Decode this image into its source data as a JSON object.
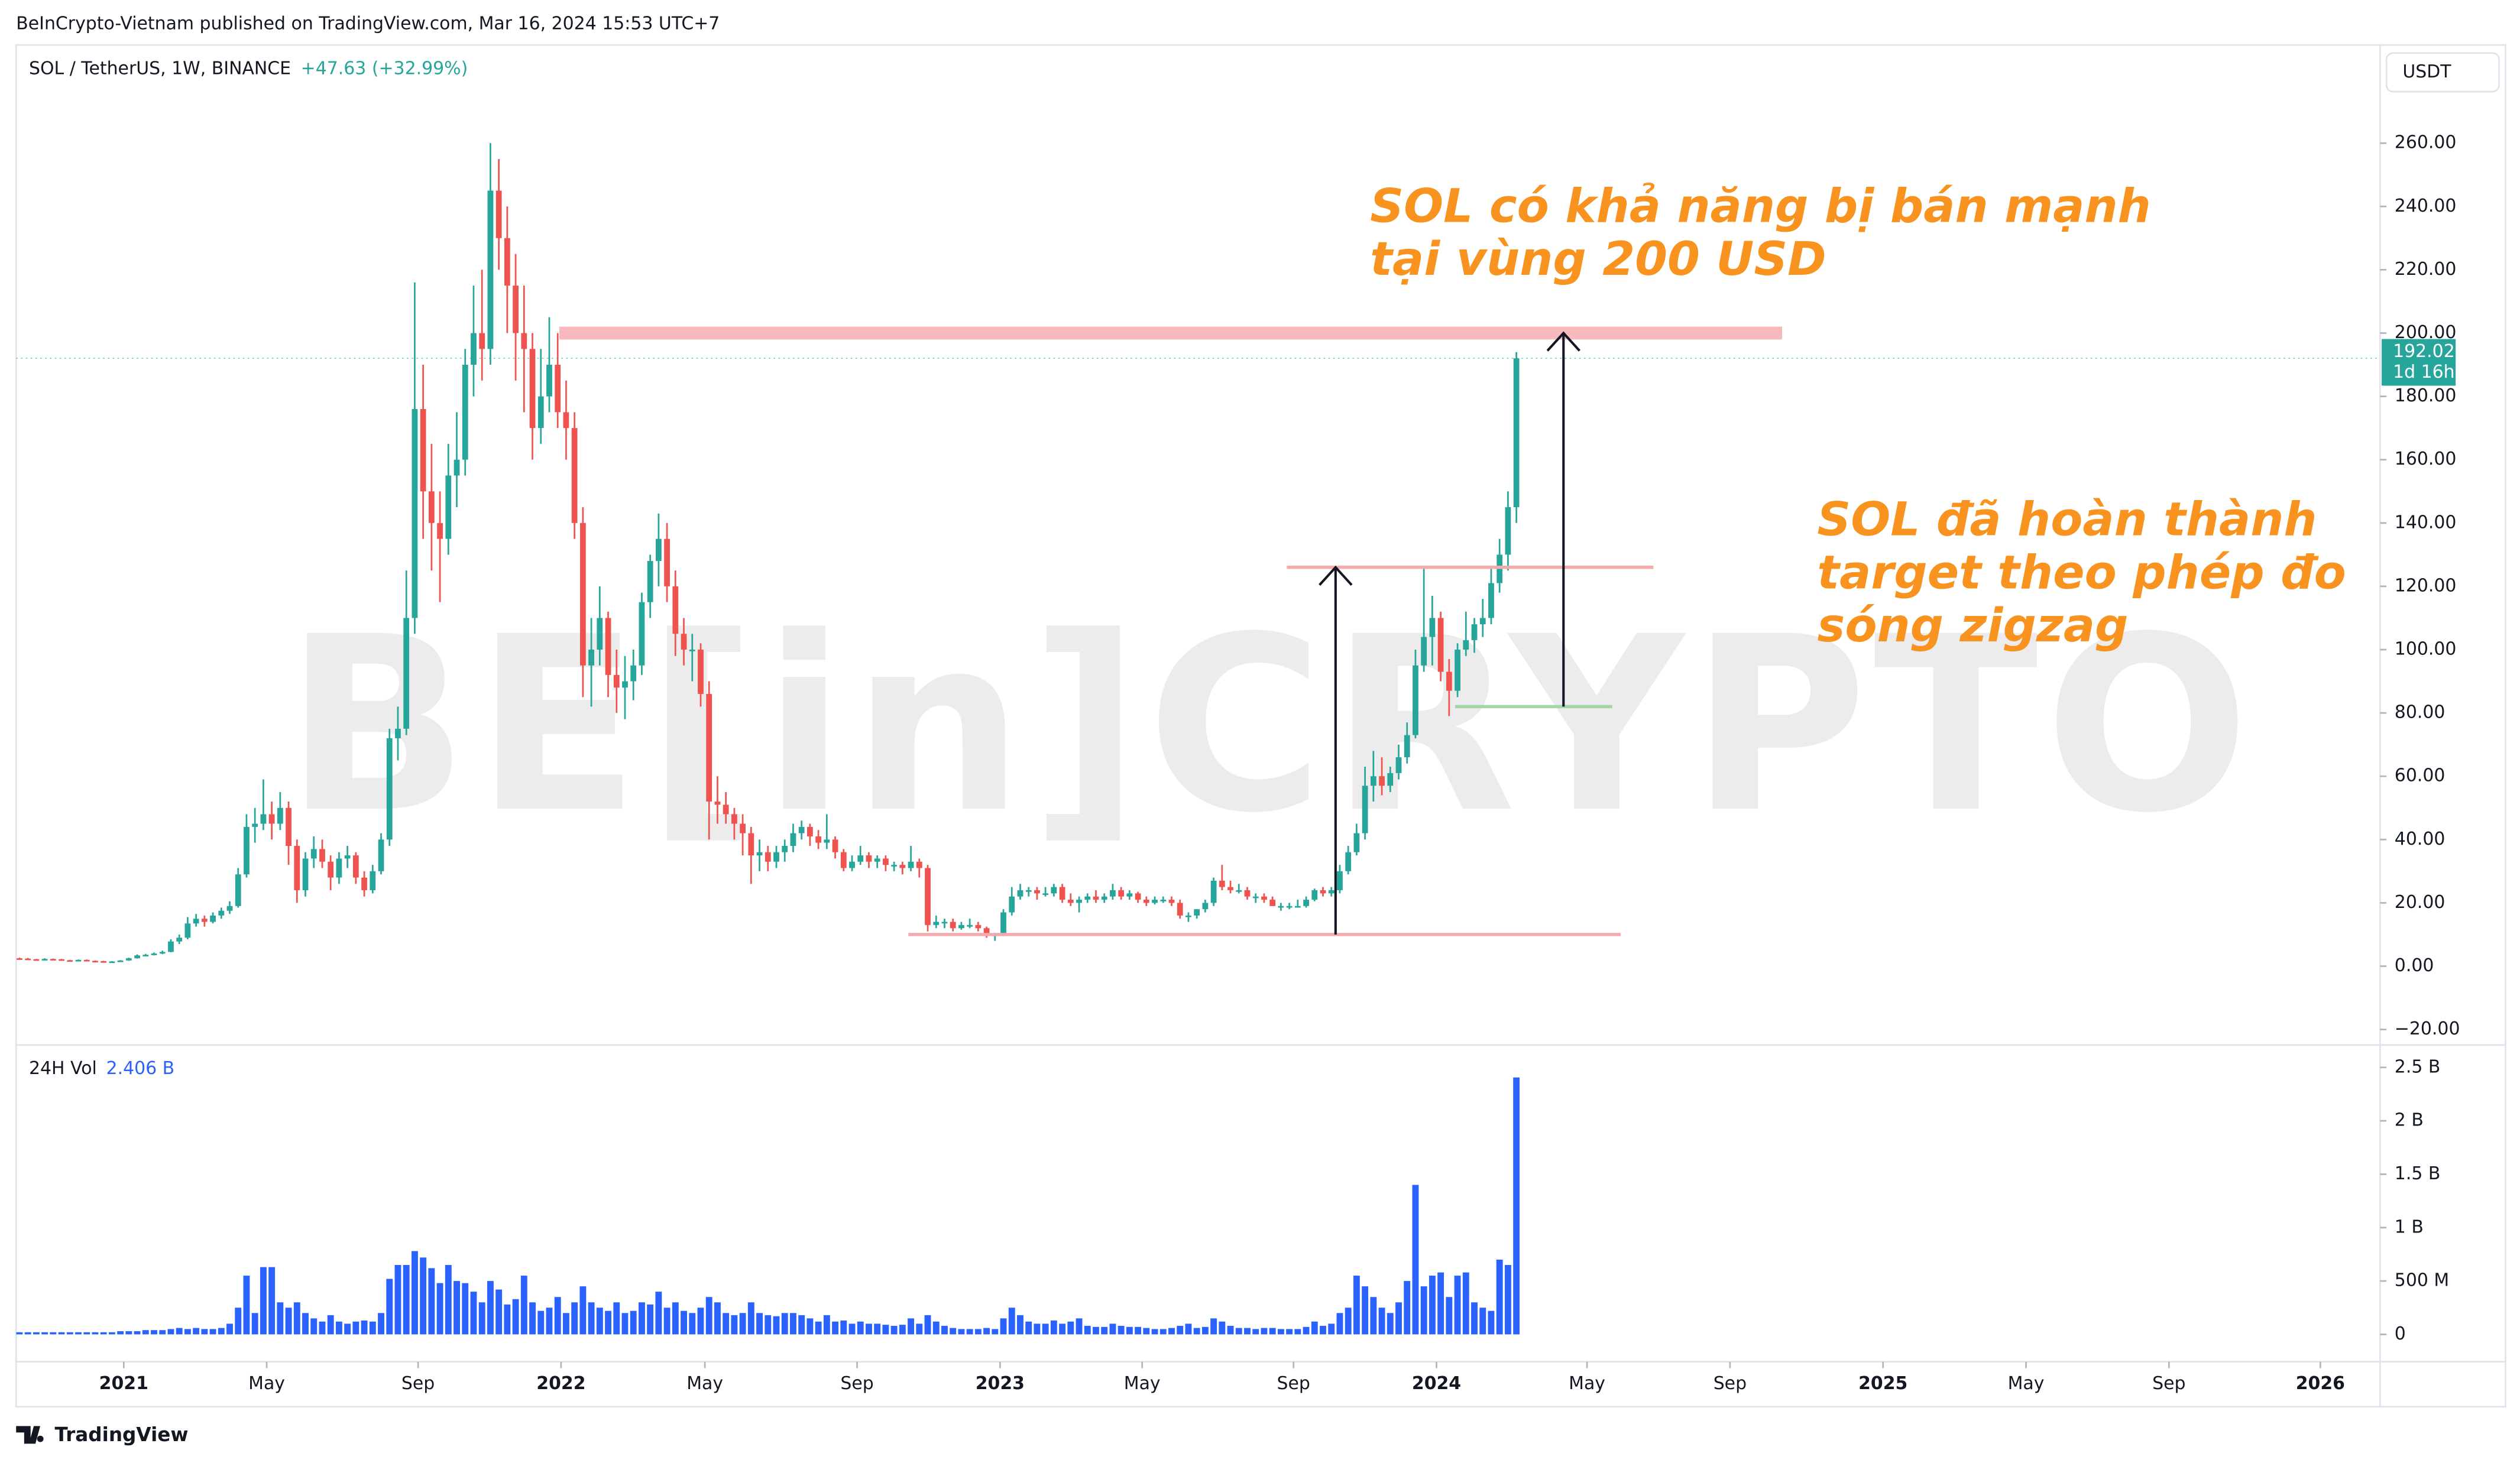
{
  "chart_data": {
    "type": "candlestick",
    "title": "BeInCrypto-Vietnam published on TradingView.com, Mar 16, 2024 15:53 UTC+7",
    "symbol": "SOL / TetherUS, 1W, BINANCE",
    "change": "+47.63 (+32.99%)",
    "currency": "USDT",
    "price_tag": "192.02",
    "countdown": "1d 16h",
    "volume_label": "24H Vol",
    "volume_last": "2.406 B",
    "watermark": "BE[in]CRYPTO",
    "footer": "TradingView",
    "annotations": [
      [
        "SOL có khả năng bị bán mạnh",
        "tại vùng 200 USD"
      ],
      [
        "SOL đã hoàn thành",
        "target theo phép đo",
        "sóng zigzag"
      ]
    ],
    "up_color": "#26a69a",
    "down_color": "#ef5350",
    "volume_color": "#2962ff",
    "grid": false,
    "xlim": [
      -0.4,
      280.7
    ],
    "xticks": [
      {
        "value": 12.4,
        "label": "2021"
      },
      {
        "value": 29.4,
        "label": "May"
      },
      {
        "value": 47.4,
        "label": "Sep"
      },
      {
        "value": 64.4,
        "label": "2022"
      },
      {
        "value": 81.5,
        "label": "May"
      },
      {
        "value": 99.6,
        "label": "Sep"
      },
      {
        "value": 116.6,
        "label": "2023"
      },
      {
        "value": 133.5,
        "label": "May"
      },
      {
        "value": 151.5,
        "label": "Sep"
      },
      {
        "value": 168.5,
        "label": "2024"
      },
      {
        "value": 186.4,
        "label": "May"
      },
      {
        "value": 203.4,
        "label": "Sep"
      },
      {
        "value": 221.6,
        "label": "2025"
      },
      {
        "value": 238.6,
        "label": "May"
      },
      {
        "value": 255.6,
        "label": "Sep"
      },
      {
        "value": 273.6,
        "label": "2026"
      }
    ],
    "ylim": [
      -24.9,
      291
    ],
    "yticks": [
      {
        "value": -20,
        "label": "−20.00"
      },
      {
        "value": 0,
        "label": "0.00"
      },
      {
        "value": 20,
        "label": "20.00"
      },
      {
        "value": 40,
        "label": "40.00"
      },
      {
        "value": 60,
        "label": "60.00"
      },
      {
        "value": 80,
        "label": "80.00"
      },
      {
        "value": 100,
        "label": "100.00"
      },
      {
        "value": 120,
        "label": "120.00"
      },
      {
        "value": 140,
        "label": "140.00"
      },
      {
        "value": 160,
        "label": "160.00"
      },
      {
        "value": 180,
        "label": "180.00"
      },
      {
        "value": 200,
        "label": "200.00"
      },
      {
        "value": 220,
        "label": "220.00"
      },
      {
        "value": 240,
        "label": "240.00"
      },
      {
        "value": 260,
        "label": "260.00"
      }
    ],
    "y2lim": [
      -0.256,
      2.71
    ],
    "y2ticks": [
      0,
      {
        "value": 0.5,
        "label": "500 M"
      },
      {
        "value": 1,
        "label": "1 B"
      },
      {
        "value": 1.5,
        "label": "1.5 B"
      },
      {
        "value": 2,
        "label": "2 B"
      },
      {
        "value": 2.5,
        "label": "2.5 B"
      }
    ],
    "ohlc": [
      [
        2.5,
        2.7,
        2.2,
        2.4
      ],
      [
        2.4,
        2.6,
        2.1,
        2.2
      ],
      [
        2.2,
        2.3,
        1.9,
        2.0
      ],
      [
        2.0,
        2.5,
        1.9,
        2.3
      ],
      [
        2.3,
        2.4,
        2.0,
        2.2
      ],
      [
        2.2,
        2.3,
        1.8,
        1.9
      ],
      [
        1.9,
        2.0,
        1.7,
        1.8
      ],
      [
        1.8,
        2.1,
        1.7,
        2.0
      ],
      [
        2.0,
        2.1,
        1.6,
        1.7
      ],
      [
        1.7,
        1.8,
        1.5,
        1.6
      ],
      [
        1.6,
        1.7,
        1.4,
        1.5
      ],
      [
        1.5,
        1.6,
        1.4,
        1.5
      ],
      [
        1.5,
        1.9,
        1.4,
        1.8
      ],
      [
        1.8,
        2.7,
        1.7,
        2.5
      ],
      [
        2.5,
        3.7,
        2.4,
        3.4
      ],
      [
        3.4,
        3.9,
        3.1,
        3.6
      ],
      [
        3.6,
        4.3,
        3.4,
        4.0
      ],
      [
        4.0,
        4.9,
        3.8,
        4.5
      ],
      [
        4.5,
        8.5,
        4.4,
        7.8
      ],
      [
        7.8,
        10,
        7,
        9
      ],
      [
        9,
        15.5,
        8.5,
        13.5
      ],
      [
        13.5,
        16.5,
        12.5,
        15
      ],
      [
        15,
        16,
        12.5,
        14
      ],
      [
        14,
        17,
        13.5,
        16
      ],
      [
        16,
        18.5,
        15,
        17.5
      ],
      [
        17.5,
        20.5,
        16.5,
        19
      ],
      [
        19,
        31,
        18.5,
        29
      ],
      [
        29,
        48,
        28,
        44
      ],
      [
        44,
        50,
        39,
        45
      ],
      [
        45,
        59,
        43,
        48
      ],
      [
        48,
        52,
        40,
        45
      ],
      [
        45,
        55,
        43,
        50
      ],
      [
        50,
        52,
        32,
        38
      ],
      [
        38,
        40,
        20,
        24
      ],
      [
        24,
        36,
        22,
        34
      ],
      [
        34,
        41,
        31,
        37
      ],
      [
        37,
        40,
        31,
        33
      ],
      [
        33,
        35,
        24,
        28
      ],
      [
        28,
        36,
        26,
        34
      ],
      [
        34,
        38,
        31,
        35
      ],
      [
        35,
        36,
        26,
        28
      ],
      [
        28,
        30,
        22,
        24
      ],
      [
        24,
        32,
        23,
        30
      ],
      [
        30,
        42,
        29,
        40
      ],
      [
        40,
        75,
        38,
        72
      ],
      [
        72,
        82,
        65,
        75
      ],
      [
        75,
        125,
        73,
        110
      ],
      [
        110,
        216,
        105,
        176
      ],
      [
        176,
        190,
        135,
        150
      ],
      [
        150,
        165,
        125,
        140
      ],
      [
        140,
        150,
        115,
        135
      ],
      [
        135,
        165,
        130,
        155
      ],
      [
        155,
        175,
        145,
        160
      ],
      [
        160,
        195,
        155,
        190
      ],
      [
        190,
        215,
        180,
        200
      ],
      [
        200,
        220,
        185,
        195
      ],
      [
        195,
        260,
        190,
        245
      ],
      [
        245,
        255,
        220,
        230
      ],
      [
        230,
        240,
        200,
        215
      ],
      [
        215,
        225,
        185,
        200
      ],
      [
        200,
        215,
        175,
        195
      ],
      [
        195,
        200,
        160,
        170
      ],
      [
        170,
        195,
        165,
        180
      ],
      [
        180,
        205,
        175,
        190
      ],
      [
        190,
        200,
        170,
        175
      ],
      [
        175,
        185,
        160,
        170
      ],
      [
        170,
        175,
        135,
        140
      ],
      [
        140,
        145,
        85,
        95
      ],
      [
        95,
        110,
        82,
        100
      ],
      [
        100,
        120,
        95,
        110
      ],
      [
        110,
        112,
        85,
        92
      ],
      [
        92,
        100,
        80,
        88
      ],
      [
        88,
        98,
        78,
        90
      ],
      [
        90,
        100,
        84,
        95
      ],
      [
        95,
        118,
        92,
        115
      ],
      [
        115,
        130,
        110,
        128
      ],
      [
        128,
        143,
        120,
        135
      ],
      [
        135,
        140,
        115,
        120
      ],
      [
        120,
        125,
        98,
        105
      ],
      [
        105,
        110,
        95,
        100
      ],
      [
        100,
        105,
        90,
        100
      ],
      [
        100,
        102,
        82,
        86
      ],
      [
        86,
        90,
        40,
        52
      ],
      [
        52,
        60,
        45,
        51
      ],
      [
        51,
        55,
        45,
        48
      ],
      [
        48,
        50,
        40,
        45
      ],
      [
        45,
        48,
        35,
        42
      ],
      [
        42,
        44,
        26,
        35
      ],
      [
        35,
        40,
        30,
        36
      ],
      [
        36,
        38,
        30,
        33
      ],
      [
        33,
        38,
        31,
        36
      ],
      [
        36,
        40,
        33,
        38
      ],
      [
        38,
        45,
        36,
        42
      ],
      [
        42,
        46,
        40,
        44
      ],
      [
        44,
        45,
        38,
        41
      ],
      [
        41,
        43,
        37,
        39
      ],
      [
        39,
        48,
        37,
        40
      ],
      [
        40,
        41,
        34,
        36
      ],
      [
        36,
        37,
        30,
        31
      ],
      [
        31,
        35,
        30,
        33
      ],
      [
        33,
        38,
        32,
        35
      ],
      [
        35,
        36,
        31,
        33
      ],
      [
        33,
        35,
        31,
        34
      ],
      [
        34,
        35,
        30,
        32
      ],
      [
        32,
        33,
        30,
        32
      ],
      [
        32,
        33,
        29,
        31
      ],
      [
        31,
        38,
        30,
        33
      ],
      [
        33,
        34,
        28,
        31
      ],
      [
        31,
        32,
        11,
        13
      ],
      [
        13,
        16,
        12,
        14
      ],
      [
        14,
        15,
        12,
        14
      ],
      [
        14,
        15,
        11,
        12
      ],
      [
        12,
        14,
        11.5,
        13
      ],
      [
        13,
        15,
        12,
        13
      ],
      [
        13,
        14,
        11,
        12
      ],
      [
        12,
        12.5,
        9,
        10
      ],
      [
        10,
        10.5,
        8,
        10
      ],
      [
        10,
        18,
        9.5,
        17
      ],
      [
        17,
        25,
        16,
        22
      ],
      [
        22,
        26,
        21,
        24
      ],
      [
        24,
        25,
        22,
        24
      ],
      [
        24,
        25,
        21,
        23
      ],
      [
        23,
        25,
        22,
        23
      ],
      [
        23,
        26,
        22,
        25
      ],
      [
        25,
        26,
        20,
        21
      ],
      [
        21,
        23,
        19,
        20
      ],
      [
        20,
        22,
        17,
        21
      ],
      [
        21,
        23,
        20,
        22
      ],
      [
        22,
        24,
        20,
        21
      ],
      [
        21,
        23,
        20,
        22
      ],
      [
        22,
        26,
        21,
        24
      ],
      [
        24,
        25,
        21,
        22
      ],
      [
        22,
        24,
        21,
        23
      ],
      [
        23,
        23.5,
        20,
        21
      ],
      [
        21,
        22,
        19,
        20
      ],
      [
        20,
        22,
        19.5,
        21
      ],
      [
        21,
        22,
        20,
        21
      ],
      [
        21,
        22,
        19,
        20
      ],
      [
        20,
        21,
        15,
        16
      ],
      [
        16,
        17,
        14,
        16
      ],
      [
        16,
        18,
        15,
        18
      ],
      [
        18,
        21,
        17,
        20
      ],
      [
        20,
        28,
        19,
        27
      ],
      [
        27,
        32,
        24,
        25
      ],
      [
        25,
        27,
        23,
        24
      ],
      [
        24,
        26,
        23,
        24
      ],
      [
        24,
        25,
        21,
        22
      ],
      [
        22,
        23,
        20,
        22
      ],
      [
        22,
        23,
        20,
        21
      ],
      [
        21,
        22,
        19,
        19
      ],
      [
        19,
        20,
        17.5,
        19
      ],
      [
        19,
        20,
        18,
        19
      ],
      [
        19,
        21,
        18.5,
        19
      ],
      [
        19,
        22,
        18.5,
        21
      ],
      [
        21,
        24.5,
        20.5,
        24
      ],
      [
        24,
        25,
        22,
        23
      ],
      [
        23,
        25,
        22,
        24
      ],
      [
        24,
        32,
        23,
        30
      ],
      [
        30,
        38,
        29,
        36
      ],
      [
        36,
        45,
        35,
        42
      ],
      [
        42,
        63,
        40,
        57
      ],
      [
        57,
        68,
        52,
        60
      ],
      [
        60,
        66,
        54,
        57
      ],
      [
        57,
        63,
        55,
        61
      ],
      [
        61,
        70,
        59,
        66
      ],
      [
        66,
        77,
        64,
        73
      ],
      [
        73,
        100,
        72,
        95
      ],
      [
        95,
        126,
        93,
        104
      ],
      [
        104,
        117,
        95,
        110
      ],
      [
        110,
        112,
        90,
        93
      ],
      [
        93,
        97,
        79,
        87
      ],
      [
        87,
        102,
        85,
        100
      ],
      [
        100,
        112,
        98,
        103
      ],
      [
        103,
        110,
        99,
        108
      ],
      [
        108,
        116,
        104,
        110
      ],
      [
        110,
        126,
        108,
        121
      ],
      [
        121,
        135,
        118,
        130
      ],
      [
        130,
        150,
        125,
        145
      ],
      [
        145,
        194,
        140,
        192.02
      ]
    ],
    "volume": [
      0.02,
      0.02,
      0.02,
      0.02,
      0.02,
      0.02,
      0.02,
      0.02,
      0.02,
      0.02,
      0.02,
      0.02,
      0.03,
      0.03,
      0.03,
      0.04,
      0.04,
      0.04,
      0.05,
      0.06,
      0.05,
      0.06,
      0.05,
      0.05,
      0.06,
      0.1,
      0.25,
      0.55,
      0.2,
      0.63,
      0.63,
      0.3,
      0.25,
      0.3,
      0.2,
      0.15,
      0.12,
      0.18,
      0.12,
      0.1,
      0.12,
      0.13,
      0.12,
      0.2,
      0.52,
      0.65,
      0.65,
      0.78,
      0.72,
      0.62,
      0.48,
      0.65,
      0.5,
      0.48,
      0.4,
      0.3,
      0.5,
      0.42,
      0.28,
      0.33,
      0.55,
      0.3,
      0.22,
      0.25,
      0.35,
      0.2,
      0.3,
      0.45,
      0.3,
      0.25,
      0.22,
      0.3,
      0.2,
      0.22,
      0.3,
      0.28,
      0.4,
      0.25,
      0.3,
      0.22,
      0.2,
      0.25,
      0.35,
      0.3,
      0.2,
      0.18,
      0.2,
      0.3,
      0.2,
      0.18,
      0.17,
      0.2,
      0.2,
      0.18,
      0.15,
      0.12,
      0.18,
      0.12,
      0.13,
      0.1,
      0.12,
      0.1,
      0.1,
      0.09,
      0.08,
      0.09,
      0.15,
      0.1,
      0.18,
      0.12,
      0.08,
      0.06,
      0.05,
      0.05,
      0.05,
      0.06,
      0.05,
      0.15,
      0.25,
      0.18,
      0.12,
      0.1,
      0.1,
      0.13,
      0.1,
      0.12,
      0.15,
      0.08,
      0.07,
      0.07,
      0.1,
      0.08,
      0.07,
      0.07,
      0.06,
      0.05,
      0.05,
      0.06,
      0.08,
      0.1,
      0.06,
      0.07,
      0.15,
      0.12,
      0.08,
      0.06,
      0.06,
      0.05,
      0.06,
      0.06,
      0.05,
      0.05,
      0.05,
      0.07,
      0.12,
      0.08,
      0.1,
      0.2,
      0.25,
      0.55,
      0.45,
      0.35,
      0.25,
      0.2,
      0.3,
      0.5,
      1.4,
      0.45,
      0.55,
      0.58,
      0.35,
      0.55,
      0.58,
      0.3,
      0.25,
      0.22,
      0.7,
      0.65,
      2.406
    ],
    "drawings": [
      {
        "type": "zone",
        "y": 200,
        "x": [
          64.2,
          209.6
        ],
        "color": "#f7b9bc"
      },
      {
        "type": "hline",
        "y": 126,
        "x": [
          150.7,
          194.3
        ],
        "color": "#f4a9ad"
      },
      {
        "type": "hline",
        "y": 10,
        "x": [
          105.7,
          190.4
        ],
        "color": "#f4a9ad"
      },
      {
        "type": "hline",
        "y": 82,
        "x": [
          170.7,
          189.4
        ],
        "color": "#a5d6a7"
      },
      {
        "type": "arrow",
        "x": 156.5,
        "y": [
          10,
          126
        ],
        "color": "#131722"
      },
      {
        "type": "arrow",
        "x": 183.6,
        "y": [
          82,
          200
        ],
        "color": "#131722"
      }
    ]
  }
}
